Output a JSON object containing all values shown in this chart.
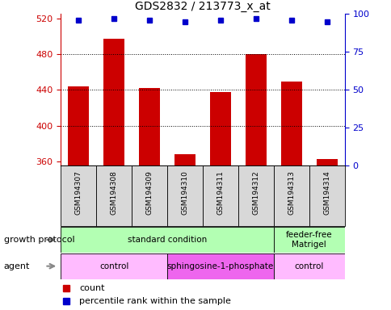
{
  "title": "GDS2832 / 213773_x_at",
  "samples": [
    "GSM194307",
    "GSM194308",
    "GSM194309",
    "GSM194310",
    "GSM194311",
    "GSM194312",
    "GSM194313",
    "GSM194314"
  ],
  "counts": [
    444,
    497,
    442,
    368,
    438,
    480,
    449,
    363
  ],
  "percentile_ranks": [
    96,
    97,
    96,
    95,
    96,
    97,
    96,
    95
  ],
  "ylim_left": [
    355,
    525
  ],
  "ylim_right": [
    0,
    100
  ],
  "yticks_left": [
    360,
    400,
    440,
    480,
    520
  ],
  "yticks_right": [
    0,
    25,
    50,
    75,
    100
  ],
  "bar_color": "#cc0000",
  "dot_color": "#0000cc",
  "gp_groups": [
    {
      "label": "standard condition",
      "start": 0,
      "end": 6,
      "color": "#b3ffb3"
    },
    {
      "label": "feeder-free\nMatrigel",
      "start": 6,
      "end": 8,
      "color": "#b3ffb3"
    }
  ],
  "ag_groups": [
    {
      "label": "control",
      "start": 0,
      "end": 3,
      "color": "#ffbbff"
    },
    {
      "label": "sphingosine-1-phosphate",
      "start": 3,
      "end": 6,
      "color": "#ee66ee"
    },
    {
      "label": "control",
      "start": 6,
      "end": 8,
      "color": "#ffbbff"
    }
  ],
  "legend_count_label": "count",
  "legend_pct_label": "percentile rank within the sample",
  "axis_color_left": "#cc0000",
  "axis_color_right": "#0000cc",
  "gp_label": "growth protocol",
  "agent_label": "agent"
}
